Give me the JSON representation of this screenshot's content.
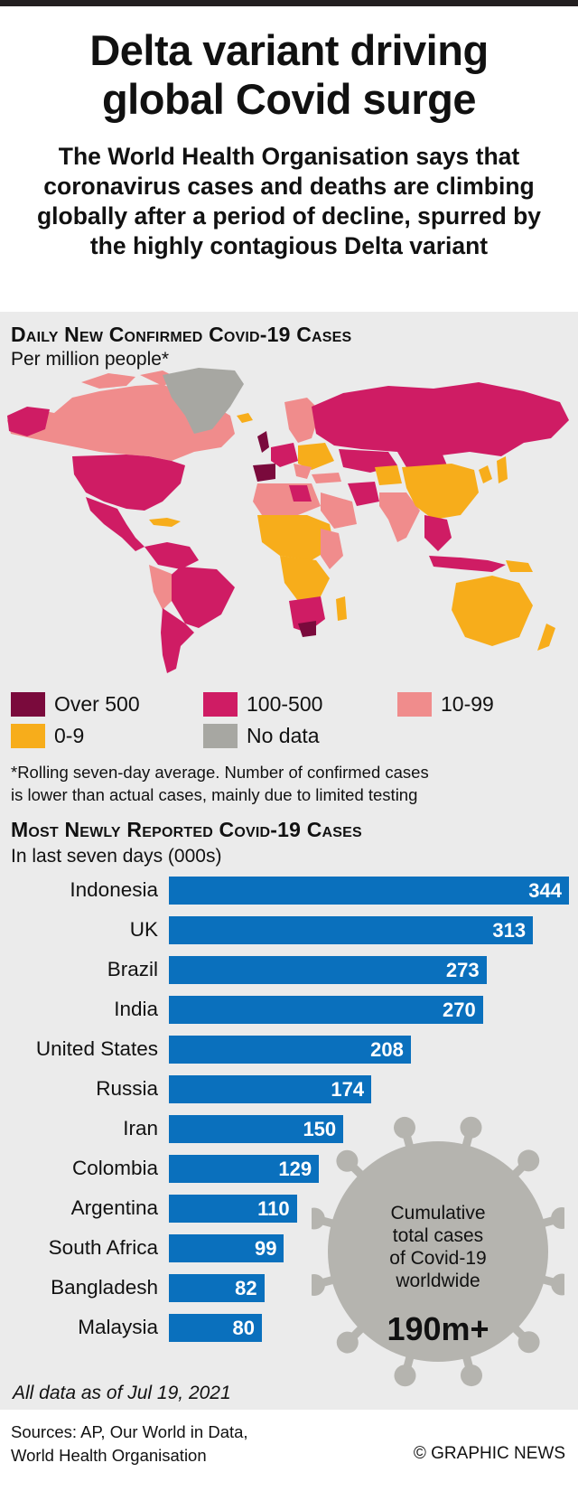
{
  "header": {
    "title_line1": "Delta variant driving",
    "title_line2": "global Covid surge",
    "subtitle": "The World Health Organisation says that coronavirus cases and deaths are climbing globally after a period of decline, spurred by the highly contagious Delta variant"
  },
  "map_section": {
    "title": "Daily New Confirmed Covid-19 Cases",
    "subtitle": "Per million people*",
    "legend": [
      {
        "label": "Over 500",
        "color": "#7a0a3c"
      },
      {
        "label": "100-500",
        "color": "#cf1c64"
      },
      {
        "label": "10-99",
        "color": "#f08c8c"
      },
      {
        "label": "0-9",
        "color": "#f7ad1b"
      },
      {
        "label": "No data",
        "color": "#a7a7a2"
      }
    ],
    "footnote_line1": "*Rolling seven-day average. Number of confirmed cases",
    "footnote_line2": "is lower than actual cases, mainly due to limited testing"
  },
  "chart_data": {
    "type": "bar",
    "title": "Most Newly Reported Covid-19 Cases",
    "subtitle": "In last seven days (000s)",
    "categories": [
      "Indonesia",
      "UK",
      "Brazil",
      "India",
      "United States",
      "Russia",
      "Iran",
      "Colombia",
      "Argentina",
      "South Africa",
      "Bangladesh",
      "Malaysia"
    ],
    "values": [
      344,
      313,
      273,
      270,
      208,
      174,
      150,
      129,
      110,
      99,
      82,
      80
    ],
    "orientation": "horizontal",
    "bar_color": "#0a70bd",
    "xlim": [
      0,
      344
    ]
  },
  "callout": {
    "text_line1": "Cumulative",
    "text_line2": "total cases",
    "text_line3": "of Covid-19",
    "text_line4": "worldwide",
    "value": "190m+"
  },
  "footer": {
    "as_of": "All data as of Jul 19, 2021",
    "sources_line1": "Sources: AP, Our World in Data,",
    "sources_line2": "World Health Organisation",
    "credit": "© GRAPHIC NEWS"
  }
}
